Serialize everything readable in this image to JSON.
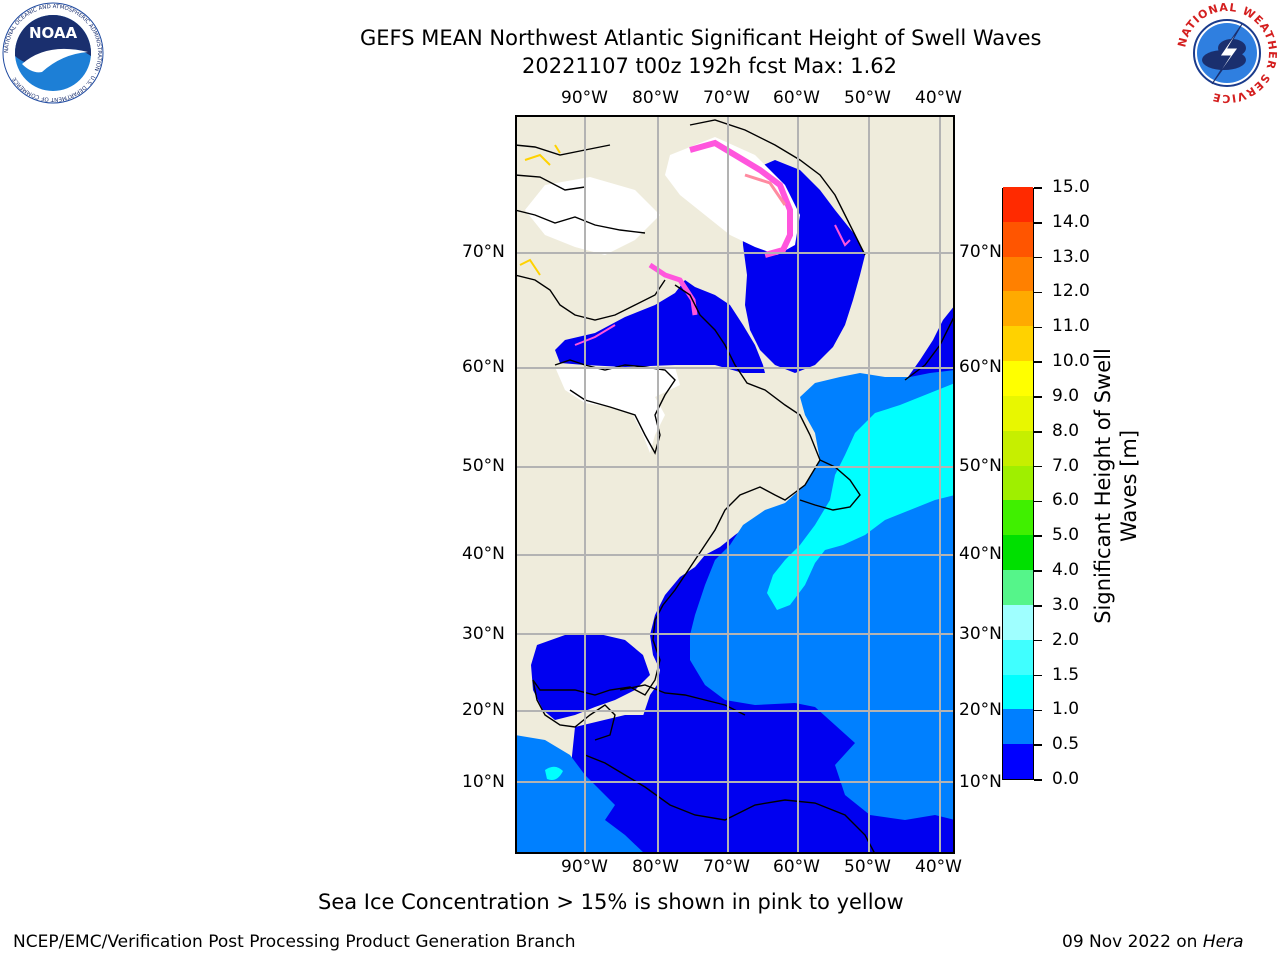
{
  "header": {
    "title_line1": "GEFS MEAN Northwest Atlantic Significant Height of Swell Waves",
    "title_line2": "20221107 t00z 192h fcst   Max: 1.62"
  },
  "logos": {
    "noaa": {
      "text": "NOAA",
      "ring_text": "NATIONAL OCEANIC AND ATMOSPHERIC ADMINISTRATION · U.S. DEPARTMENT OF COMMERCE"
    },
    "nws": {
      "ring_text": "NATIONAL WEATHER SERVICE"
    }
  },
  "map": {
    "lon_labels": [
      "90°W",
      "80°W",
      "70°W",
      "60°W",
      "50°W",
      "40°W"
    ],
    "lat_labels": [
      "70°N",
      "60°N",
      "50°N",
      "40°N",
      "30°N",
      "20°N",
      "10°N"
    ]
  },
  "colorbar": {
    "label_line1": "Significant Height of Swell",
    "label_line2": "Waves [m]",
    "ticks": [
      "0.0",
      "0.5",
      "1.0",
      "1.5",
      "2.0",
      "3.0",
      "4.0",
      "5.0",
      "6.0",
      "7.0",
      "8.0",
      "9.0",
      "10.0",
      "11.0",
      "12.0",
      "13.0",
      "14.0",
      "15.0"
    ],
    "colors": [
      "#0000ff",
      "#007fff",
      "#00ffff",
      "#40ffff",
      "#9fffff",
      "#55f58a",
      "#00e000",
      "#40f000",
      "#9fef00",
      "#c6ef00",
      "#e8f700",
      "#ffff00",
      "#ffd200",
      "#ffaa00",
      "#ff8000",
      "#ff5500",
      "#ff2a00",
      "#ff0000"
    ]
  },
  "caption": "Sea Ice Concentration > 15% is shown in pink to yellow",
  "footer": {
    "left": "NCEP/EMC/Verification Post Processing Product Generation Branch",
    "date": "09 Nov 2022 on ",
    "host": "Hera"
  }
}
